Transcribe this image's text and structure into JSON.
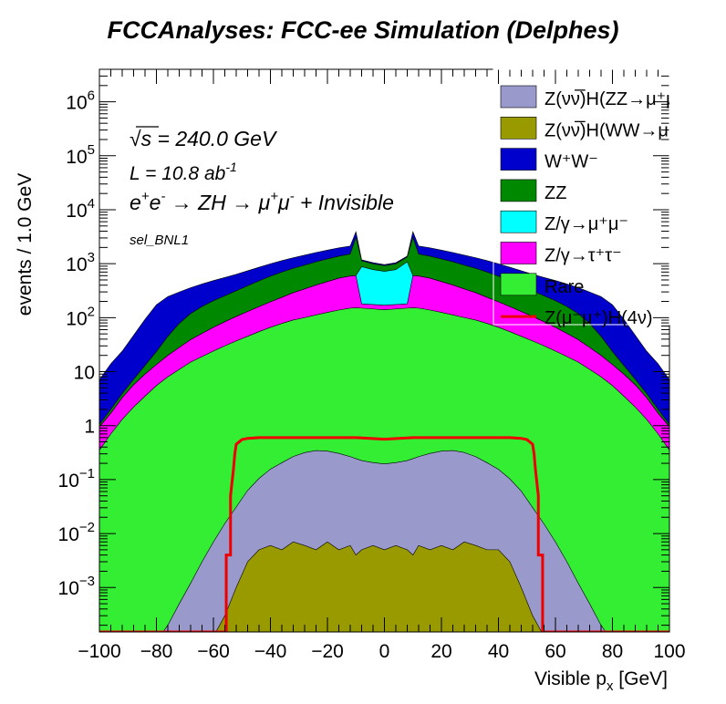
{
  "title": "FCCAnalyses: FCC-ee Simulation (Delphes)",
  "annotations": {
    "sqrt_s_symbol": "√s",
    "sqrt_s_value": " = 240.0 GeV",
    "lumi_main": "L = 10.8 ab",
    "lumi_sup": "-1",
    "process_parts": [
      "e",
      "+",
      "e",
      "-",
      " → ZH → μ",
      "+",
      "μ",
      "-",
      " + Invisible"
    ],
    "selection": "sel_BNL1"
  },
  "legend_entries": [
    {
      "label": "Z(νν̅)H(ZZ→μ⁺μ⁻ν⁺",
      "color": "#9999cc"
    },
    {
      "label": "Z(νν̅)H(WW→μ⁺νμ",
      "color": "#999900"
    },
    {
      "label": "W⁺W⁻",
      "color": "#0000cc"
    },
    {
      "label": "ZZ",
      "color": "#008800"
    },
    {
      "label": "Z/γ→μ⁺μ⁻",
      "color": "#00ffff"
    },
    {
      "label": "Z/γ→τ⁺τ⁻",
      "color": "#ff00ff"
    },
    {
      "label": "Rare",
      "color": "#33ee33"
    },
    {
      "label": "Z(μ⁻μ⁺)H(4ν)",
      "color": "#ee0000"
    }
  ],
  "chart_data": {
    "type": "area",
    "stacked": true,
    "log_y": true,
    "xlabel": "Visible p",
    "xlabel_sub": "x",
    "xlabel_unit": " [GeV]",
    "ylabel": "events / 1.0 GeV",
    "xlim": [
      -100,
      100
    ],
    "ylim": [
      0.00015,
      4000000
    ],
    "x_ticks": [
      -100,
      -80,
      -60,
      -40,
      -20,
      0,
      20,
      40,
      60,
      80,
      100
    ],
    "y_ticks": [
      {
        "value": 1000000,
        "label": "10",
        "exp": "6"
      },
      {
        "value": 100000,
        "label": "10",
        "exp": "5"
      },
      {
        "value": 10000,
        "label": "10",
        "exp": "4"
      },
      {
        "value": 1000,
        "label": "10",
        "exp": "3"
      },
      {
        "value": 100,
        "label": "10",
        "exp": "2"
      },
      {
        "value": 10,
        "label": "10",
        "exp": ""
      },
      {
        "value": 1,
        "label": "1",
        "exp": ""
      },
      {
        "value": 0.1,
        "label": "10",
        "exp": "−1"
      },
      {
        "value": 0.01,
        "label": "10",
        "exp": "−2"
      },
      {
        "value": 0.001,
        "label": "10",
        "exp": "−3"
      }
    ],
    "x": [
      -100,
      -96,
      -92,
      -88,
      -84,
      -80,
      -76,
      -72,
      -68,
      -64,
      -60,
      -56,
      -52,
      -48,
      -44,
      -40,
      -36,
      -32,
      -28,
      -24,
      -20,
      -16,
      -12,
      -10,
      -8,
      -4,
      0,
      4,
      8,
      10,
      12,
      16,
      20,
      24,
      28,
      32,
      36,
      40,
      44,
      48,
      52,
      56,
      60,
      64,
      68,
      72,
      76,
      80,
      84,
      88,
      92,
      96,
      100
    ],
    "series": [
      {
        "name": "Z(νν̅)H(WW→μ⁺νμ",
        "color": "#999900",
        "values": [
          0,
          0,
          0,
          0,
          0,
          0,
          0,
          0,
          0,
          0,
          0,
          0.0003,
          0.001,
          0.003,
          0.005,
          0.006,
          0.005,
          0.007,
          0.006,
          0.005,
          0.007,
          0.005,
          0.006,
          0.004,
          0.005,
          0.006,
          0.005,
          0.006,
          0.005,
          0.004,
          0.006,
          0.005,
          0.006,
          0.005,
          0.007,
          0.006,
          0.005,
          0.005,
          0.003,
          0.001,
          0.0003,
          0,
          0,
          0,
          0,
          0,
          0,
          0,
          0,
          0,
          0,
          0,
          0
        ]
      },
      {
        "name": "Z(νν̅)H(ZZ→μ⁺μ⁻ν⁺",
        "color": "#9999cc",
        "values": [
          0,
          0,
          0,
          0,
          0,
          0.0001,
          0.0002,
          0.0005,
          0.0012,
          0.003,
          0.007,
          0.015,
          0.03,
          0.06,
          0.1,
          0.15,
          0.2,
          0.26,
          0.31,
          0.34,
          0.33,
          0.3,
          0.26,
          0.24,
          0.22,
          0.2,
          0.19,
          0.2,
          0.22,
          0.24,
          0.26,
          0.3,
          0.33,
          0.34,
          0.31,
          0.26,
          0.2,
          0.15,
          0.1,
          0.06,
          0.03,
          0.015,
          0.007,
          0.003,
          0.0012,
          0.0005,
          0.0002,
          0.0001,
          0,
          0,
          0,
          0,
          0
        ]
      },
      {
        "name": "Rare",
        "color": "#33ee33",
        "values": [
          0.35,
          0.7,
          1.3,
          2.2,
          3.5,
          5.5,
          8,
          11,
          15,
          19,
          24,
          30,
          37,
          45,
          55,
          66,
          78,
          90,
          100,
          112,
          125,
          138,
          150,
          152,
          150,
          145,
          140,
          145,
          150,
          152,
          150,
          138,
          125,
          112,
          100,
          90,
          78,
          66,
          55,
          45,
          37,
          30,
          24,
          19,
          15,
          11,
          8,
          5.5,
          3.5,
          2.2,
          1.3,
          0.7,
          0.35
        ]
      },
      {
        "name": "Z/γ→τ⁺τ⁻",
        "color": "#ff00ff",
        "values": [
          0.6,
          1,
          2,
          3.5,
          5.5,
          8,
          12,
          17,
          24,
          32,
          42,
          54,
          68,
          85,
          105,
          130,
          160,
          200,
          240,
          290,
          340,
          400,
          440,
          450,
          30,
          30,
          30,
          30,
          30,
          450,
          440,
          400,
          340,
          290,
          240,
          200,
          160,
          130,
          105,
          85,
          68,
          54,
          42,
          32,
          24,
          17,
          12,
          8,
          5.5,
          3.5,
          2,
          1,
          0.6
        ]
      },
      {
        "name": "Z/γ→μ⁺μ⁻",
        "color": "#00ffff",
        "values": [
          0,
          0,
          0,
          0,
          0,
          0,
          0,
          0,
          0,
          0,
          0,
          0,
          0,
          0,
          0,
          0,
          0,
          0,
          0,
          0,
          0,
          0,
          0,
          0,
          700,
          600,
          550,
          600,
          900,
          0,
          0,
          0,
          0,
          0,
          0,
          0,
          0,
          0,
          0,
          0,
          0,
          0,
          0,
          0,
          0,
          0,
          0,
          0,
          0,
          0,
          0,
          0,
          0
        ]
      },
      {
        "name": "ZZ",
        "color": "#008800",
        "values": [
          0.1,
          0.3,
          0.6,
          1.5,
          4,
          10,
          25,
          50,
          80,
          110,
          140,
          170,
          210,
          260,
          320,
          390,
          460,
          530,
          600,
          680,
          760,
          840,
          920,
          2500,
          250,
          220,
          200,
          220,
          250,
          2500,
          920,
          840,
          760,
          680,
          600,
          530,
          460,
          390,
          320,
          260,
          210,
          170,
          140,
          110,
          80,
          50,
          25,
          10,
          4,
          1.5,
          0.6,
          0.3,
          0.1
        ]
      },
      {
        "name": "W⁺W⁻",
        "color": "#0000cc",
        "values": [
          6,
          12,
          20,
          40,
          80,
          150,
          200,
          220,
          240,
          260,
          280,
          300,
          320,
          350,
          380,
          410,
          440,
          470,
          500,
          530,
          560,
          590,
          610,
          800,
          50,
          50,
          40,
          50,
          50,
          800,
          610,
          590,
          560,
          530,
          500,
          470,
          440,
          410,
          380,
          350,
          320,
          300,
          280,
          260,
          240,
          220,
          200,
          150,
          80,
          40,
          20,
          12,
          6
        ]
      }
    ],
    "signal": {
      "name": "Z(μ⁻μ⁺)H(4ν)",
      "color": "#ee0000",
      "x": [
        -100,
        -55.5,
        -55.5,
        -54,
        -54,
        -53,
        -52.5,
        -52,
        -50,
        -48,
        -44,
        -40,
        -30,
        -20,
        -10,
        -5,
        0,
        5,
        10,
        20,
        30,
        40,
        44,
        48,
        50,
        52,
        52.5,
        53,
        54,
        54,
        55.5,
        55.5,
        100
      ],
      "values": [
        0.00015,
        0.00015,
        0.004,
        0.004,
        0.05,
        0.15,
        0.3,
        0.45,
        0.55,
        0.58,
        0.6,
        0.6,
        0.6,
        0.6,
        0.6,
        0.58,
        0.56,
        0.58,
        0.6,
        0.6,
        0.6,
        0.6,
        0.6,
        0.58,
        0.55,
        0.45,
        0.3,
        0.15,
        0.05,
        0.004,
        0.004,
        0.00015,
        0.00015
      ]
    }
  }
}
